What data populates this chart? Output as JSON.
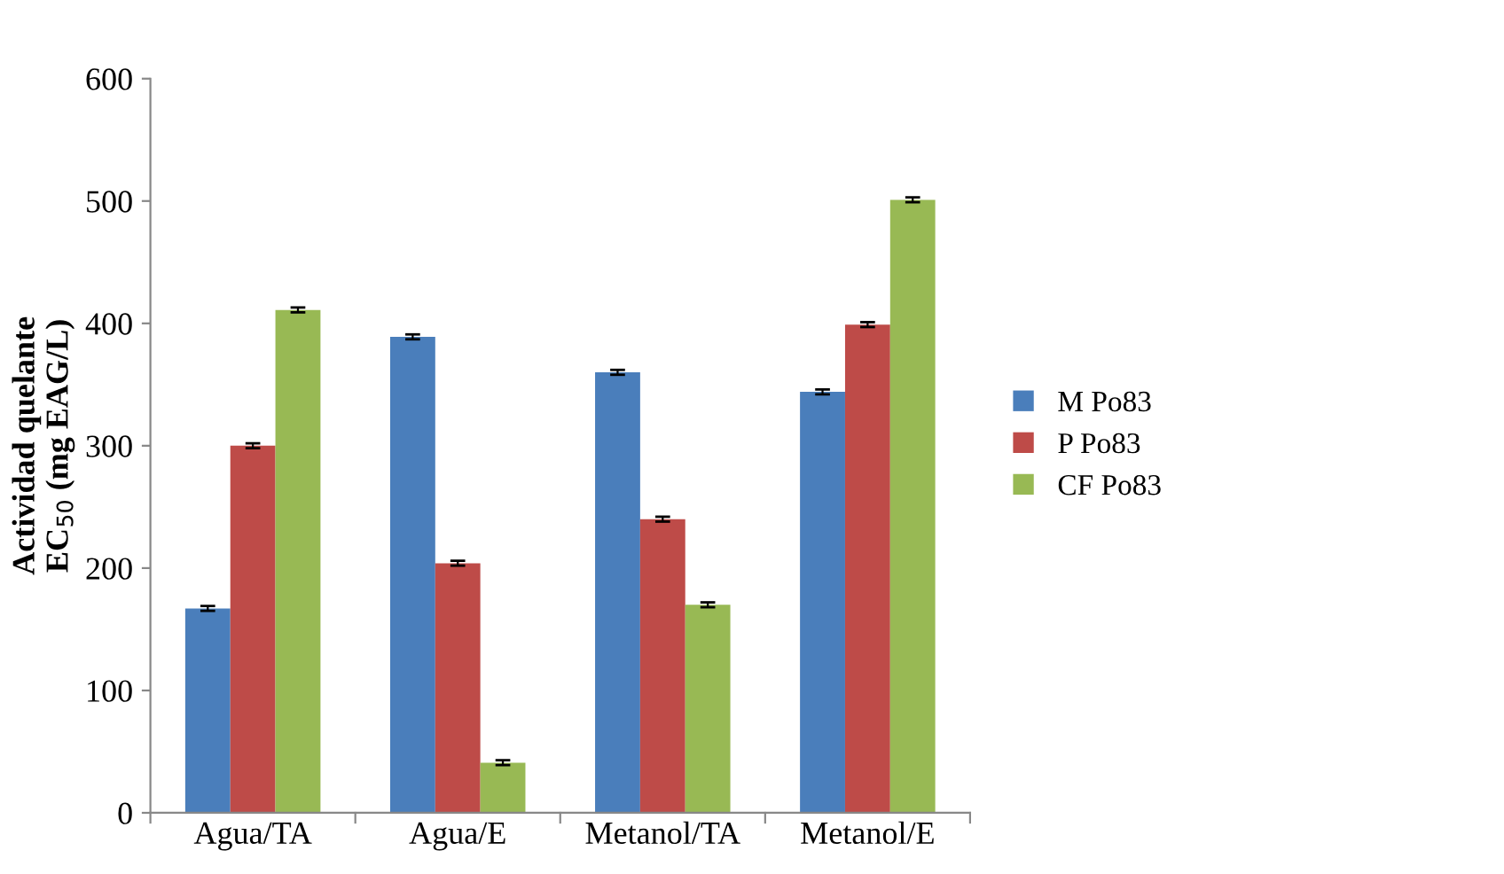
{
  "chart_data": {
    "type": "bar",
    "ylabel": "Actividad quelante\nEC$_{50}$ (mg EAG/L)",
    "categories": [
      "Agua/TA",
      "Agua/E",
      "Metanol/TA",
      "Metanol/E"
    ],
    "series": [
      {
        "name": "M Po83",
        "color": "#4a7ebb",
        "values": [
          167,
          389,
          360,
          344
        ],
        "errors": [
          2,
          2,
          2,
          2
        ]
      },
      {
        "name": "P Po83",
        "color": "#be4b48",
        "values": [
          300,
          204,
          240,
          399
        ],
        "errors": [
          2,
          2,
          2,
          2
        ]
      },
      {
        "name": "CF Po83",
        "color": "#98b954",
        "values": [
          411,
          41,
          170,
          501
        ],
        "errors": [
          2,
          2,
          2,
          2
        ]
      }
    ],
    "ylim": [
      0,
      600
    ],
    "yticks": [
      0,
      100,
      200,
      300,
      400,
      500,
      600
    ],
    "grid": false,
    "legend": "right"
  }
}
